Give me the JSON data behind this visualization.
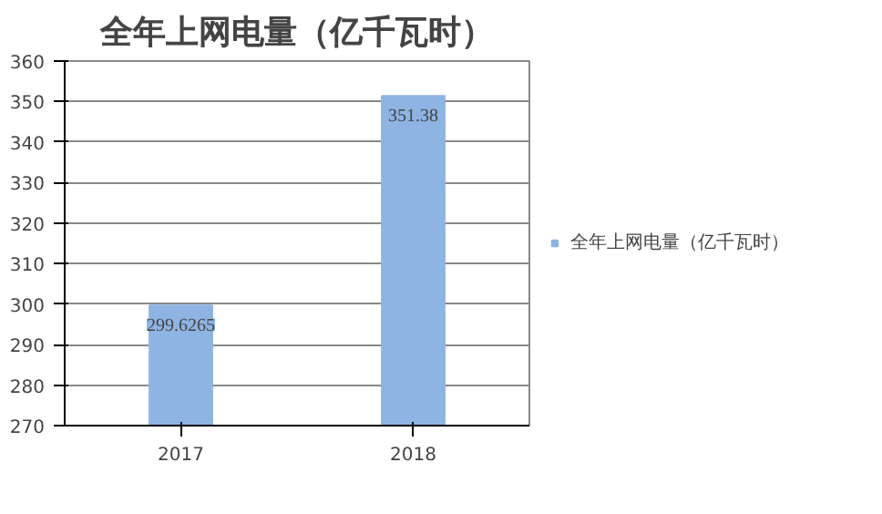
{
  "chart_data": {
    "type": "bar",
    "title": "全年上网电量（亿千瓦时）",
    "categories": [
      "2017",
      "2018"
    ],
    "series": [
      {
        "name": "全年上网电量（亿千瓦时）",
        "color": "#8eb4e3",
        "values": [
          299.6265,
          351.38
        ]
      }
    ],
    "ylim": [
      270,
      360
    ],
    "yticks": [
      270,
      280,
      290,
      300,
      310,
      320,
      330,
      340,
      350,
      360
    ],
    "grid": "y",
    "legend": "right",
    "data_labels": true
  }
}
